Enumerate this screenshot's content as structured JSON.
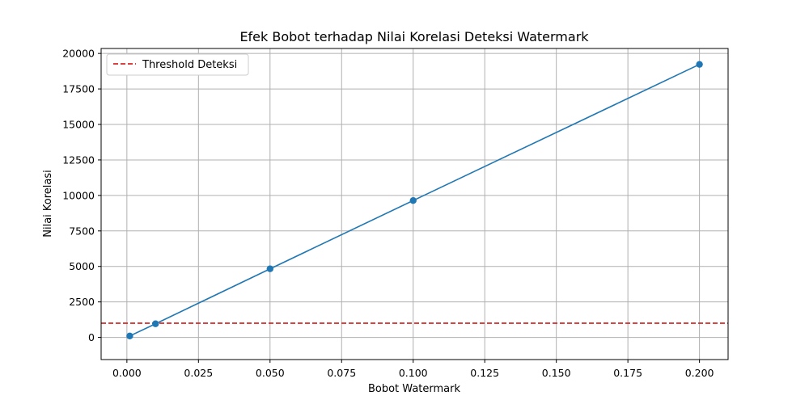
{
  "chart_data": {
    "type": "line",
    "title": "Efek Bobot terhadap Nilai Korelasi Deteksi Watermark",
    "xlabel": "Bobot Watermark",
    "ylabel": "Nilai Korelasi",
    "xlim": [
      -0.009,
      0.21
    ],
    "ylim": [
      -1560,
      20350
    ],
    "x_ticks": [
      0.0,
      0.025,
      0.05,
      0.075,
      0.1,
      0.125,
      0.15,
      0.175,
      0.2
    ],
    "x_tick_labels": [
      "0.000",
      "0.025",
      "0.050",
      "0.075",
      "0.100",
      "0.125",
      "0.150",
      "0.175",
      "0.200"
    ],
    "y_ticks": [
      0,
      2500,
      5000,
      7500,
      10000,
      12500,
      15000,
      17500,
      20000
    ],
    "y_tick_labels": [
      "0",
      "2500",
      "5000",
      "7500",
      "10000",
      "12500",
      "15000",
      "17500",
      "20000"
    ],
    "grid": true,
    "legend_position": "top-left",
    "series": [
      {
        "values": [
          100,
          960,
          4830,
          9640,
          19230
        ],
        "x": [
          0.001,
          0.01,
          0.05,
          0.1,
          0.2
        ],
        "color": "#1f77b4",
        "marker": "circle",
        "line_style": "solid"
      }
    ],
    "reference_lines": [
      {
        "name": "Threshold Deteksi",
        "axis": "y",
        "value": 1000,
        "color": "#d62728",
        "line_style": "dashed"
      }
    ]
  }
}
